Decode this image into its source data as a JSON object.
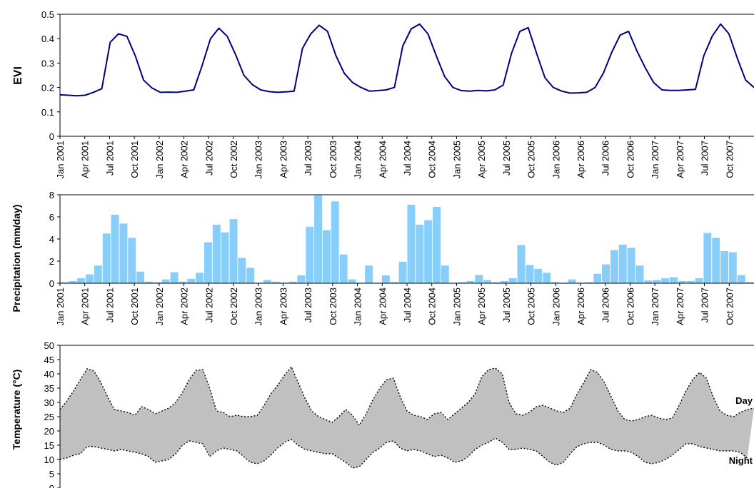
{
  "charts": [
    {
      "type": "line",
      "ylabel": "EVI",
      "ylim": [
        0,
        0.5
      ],
      "yticks": [
        "0",
        "0.1",
        "0.2",
        "0.3",
        "0.4",
        "0.5"
      ],
      "xticks": [
        "Jan 2001",
        "Apr 2001",
        "Jul 2001",
        "Oct 2001",
        "Jan 2002",
        "Apr 2002",
        "Jul 2002",
        "Oct 2002",
        "Jan 2003",
        "Apr 2003",
        "Jul 2003",
        "Oct 2003",
        "Jan 2004",
        "Apr 2004",
        "Jul 2004",
        "Oct 2004",
        "Jan 2005",
        "Apr 2005",
        "Jul 2005",
        "Oct 2005",
        "Jan 2006",
        "Apr 2006",
        "Jul 2006",
        "Oct 2006",
        "Jan 2007",
        "Apr 2007",
        "Jul 2007",
        "Oct 2007"
      ],
      "series": [
        {
          "color": "#000080",
          "values": [
            0.17,
            0.168,
            0.166,
            0.168,
            0.18,
            0.195,
            0.385,
            0.42,
            0.41,
            0.33,
            0.23,
            0.198,
            0.18,
            0.181,
            0.18,
            0.185,
            0.19,
            0.29,
            0.4,
            0.443,
            0.41,
            0.335,
            0.25,
            0.212,
            0.19,
            0.183,
            0.18,
            0.182,
            0.185,
            0.36,
            0.42,
            0.455,
            0.43,
            0.33,
            0.258,
            0.22,
            0.2,
            0.185,
            0.187,
            0.19,
            0.2,
            0.37,
            0.44,
            0.46,
            0.42,
            0.33,
            0.245,
            0.2,
            0.187,
            0.185,
            0.188,
            0.186,
            0.19,
            0.21,
            0.34,
            0.43,
            0.445,
            0.34,
            0.24,
            0.2,
            0.185,
            0.177,
            0.178,
            0.18,
            0.2,
            0.26,
            0.345,
            0.415,
            0.43,
            0.35,
            0.28,
            0.22,
            0.19,
            0.188,
            0.188,
            0.19,
            0.192,
            0.33,
            0.41,
            0.46,
            0.42,
            0.32,
            0.23,
            0.2
          ]
        }
      ]
    },
    {
      "type": "bar",
      "ylabel": "Precipitation (mm/day)",
      "ylim": [
        0,
        8
      ],
      "yticks": [
        "0",
        "2",
        "4",
        "6",
        "8"
      ],
      "xticks": [
        "Jan 2001",
        "Apr 2001",
        "Jul 2001",
        "Oct 2001",
        "Jan 2002",
        "Apr 2002",
        "Jul 2002",
        "Oct 2002",
        "Jan 2003",
        "Apr 2003",
        "Jul 2003",
        "Oct 2003",
        "Jan 2004",
        "Apr 2004",
        "Jul 2004",
        "Oct 2004",
        "Jan 2005",
        "Apr 2005",
        "Jul 2005",
        "Oct 2005",
        "Jan 2006",
        "Apr 2006",
        "Jul 2006",
        "Oct 2006",
        "Jan 2007",
        "Apr 2007",
        "Jul 2007",
        "Oct 2007"
      ],
      "series": [
        {
          "color": "#87CEFA",
          "values": [
            0.1,
            0.2,
            0.45,
            0.8,
            1.6,
            4.5,
            6.2,
            5.4,
            4.1,
            1.05,
            0.15,
            0.1,
            0.35,
            1.0,
            0.15,
            0.4,
            0.95,
            3.7,
            5.3,
            4.6,
            5.8,
            2.3,
            1.4,
            0.05,
            0.3,
            0.15,
            0.05,
            0.15,
            0.7,
            5.1,
            7.95,
            4.8,
            7.4,
            2.6,
            0.35,
            0.05,
            1.6,
            0.05,
            0.7,
            0.1,
            1.95,
            7.1,
            5.3,
            5.7,
            6.9,
            1.6,
            0.05,
            0.1,
            0.2,
            0.75,
            0.3,
            0.1,
            0.2,
            0.45,
            3.45,
            1.65,
            1.3,
            0.95,
            0.1,
            0.05,
            0.35,
            0.05,
            0.1,
            0.85,
            1.7,
            3.0,
            3.5,
            3.2,
            1.6,
            0.25,
            0.3,
            0.45,
            0.55,
            0.2,
            0.2,
            0.45,
            4.55,
            4.1,
            2.9,
            2.8,
            0.75,
            0.1
          ]
        }
      ]
    },
    {
      "type": "area",
      "ylabel": "Temperature (°C)",
      "ylim": [
        0,
        50
      ],
      "yticks": [
        "0",
        "5",
        "10",
        "15",
        "20",
        "25",
        "30",
        "35",
        "40",
        "45",
        "50"
      ],
      "series": [
        {
          "name": "Day",
          "values": [
            27.5,
            30.5,
            34,
            38,
            41.8,
            41,
            37,
            32,
            27.5,
            27,
            26.5,
            25.5,
            28.5,
            27.5,
            26,
            27,
            28,
            30,
            33.5,
            38,
            41.2,
            41.5,
            35,
            27,
            26.5,
            25,
            25.5,
            25,
            25,
            25.5,
            29,
            33,
            36,
            39.5,
            42.5,
            37,
            31.5,
            27,
            25,
            24,
            23,
            25,
            27.5,
            25.5,
            22,
            26,
            31,
            35,
            38,
            38.5,
            32,
            27,
            25.5,
            25,
            24,
            26,
            26.5,
            24,
            26,
            28,
            30,
            33,
            39,
            41.5,
            42,
            40,
            30,
            26,
            25.5,
            26.5,
            28.5,
            29,
            28,
            27,
            26.5,
            28,
            33,
            37,
            41.5,
            40.5,
            37,
            32,
            27,
            24,
            23.5,
            24,
            25,
            25.5,
            24.5,
            24,
            24.5,
            29,
            34,
            38,
            40.5,
            38.5,
            32,
            27,
            25.5,
            25,
            26.5,
            27.5,
            28
          ]
        },
        {
          "name": "Night",
          "values": [
            10,
            10.5,
            11.5,
            12,
            14.5,
            14.5,
            14,
            13.5,
            13,
            13.5,
            13,
            12.5,
            12,
            11,
            9,
            9.5,
            10,
            12,
            15,
            16.5,
            16,
            15.5,
            11,
            13,
            14,
            13.5,
            13,
            11,
            9,
            8.5,
            9.5,
            11.5,
            14,
            16,
            17,
            15,
            13.5,
            13,
            12.5,
            12,
            12,
            10.5,
            9,
            7,
            7.5,
            10,
            12.5,
            14,
            16,
            16.5,
            14,
            13,
            13.5,
            13,
            12,
            11,
            11.5,
            10.5,
            9,
            9.5,
            11,
            13.5,
            15,
            16,
            17.5,
            16,
            13.5,
            13.5,
            14,
            13.5,
            13,
            11,
            9,
            8,
            9,
            12,
            14.5,
            15.5,
            16,
            16,
            15,
            13.5,
            13,
            13,
            12.5,
            11,
            9,
            8.5,
            9,
            10,
            11.5,
            13.5,
            15.5,
            15.5,
            14.5,
            14,
            13.5,
            13,
            13,
            13,
            12.5,
            10.5
          ]
        }
      ]
    }
  ]
}
